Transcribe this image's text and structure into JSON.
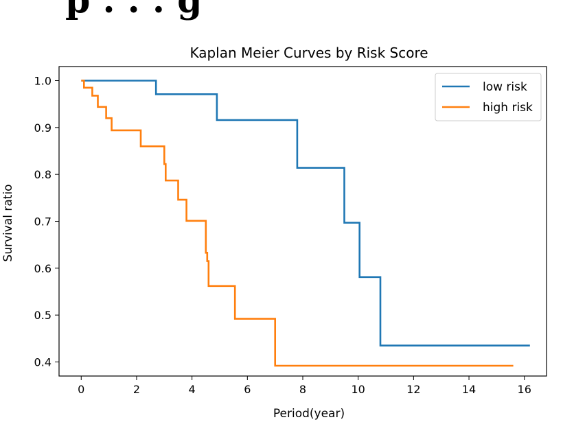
{
  "header_fragment": "p . . . g",
  "chart_data": {
    "type": "line",
    "step": "post",
    "title": "Kaplan Meier Curves by Risk Score",
    "xlabel": "Period(year)",
    "ylabel": "Survival ratio",
    "xlim": [
      -0.8,
      16.8
    ],
    "ylim": [
      0.37,
      1.03
    ],
    "xticks": [
      0,
      2,
      4,
      6,
      8,
      10,
      12,
      14,
      16
    ],
    "yticks": [
      0.4,
      0.5,
      0.6,
      0.7,
      0.8,
      0.9,
      1.0
    ],
    "xtick_labels": [
      "0",
      "2",
      "4",
      "6",
      "8",
      "10",
      "12",
      "14",
      "16"
    ],
    "ytick_labels": [
      "0.4",
      "0.5",
      "0.6",
      "0.7",
      "0.8",
      "0.9",
      "1.0"
    ],
    "grid": false,
    "legend_position": "top-right",
    "series": [
      {
        "name": "low risk",
        "color": "#1f77b4",
        "x": [
          0,
          2.7,
          4.9,
          7.8,
          9.5,
          10.05,
          10.8,
          16.2
        ],
        "y": [
          1.0,
          0.971,
          0.916,
          0.814,
          0.697,
          0.581,
          0.435,
          0.435
        ]
      },
      {
        "name": "high risk",
        "color": "#ff7f0e",
        "x": [
          0,
          0.1,
          0.4,
          0.6,
          0.9,
          1.1,
          2.15,
          3.0,
          3.05,
          3.5,
          3.8,
          4.5,
          4.55,
          4.6,
          5.55,
          7.0,
          15.6
        ],
        "y": [
          1.0,
          0.985,
          0.968,
          0.944,
          0.92,
          0.894,
          0.86,
          0.822,
          0.787,
          0.746,
          0.701,
          0.633,
          0.615,
          0.562,
          0.492,
          0.392,
          0.392
        ]
      }
    ]
  }
}
